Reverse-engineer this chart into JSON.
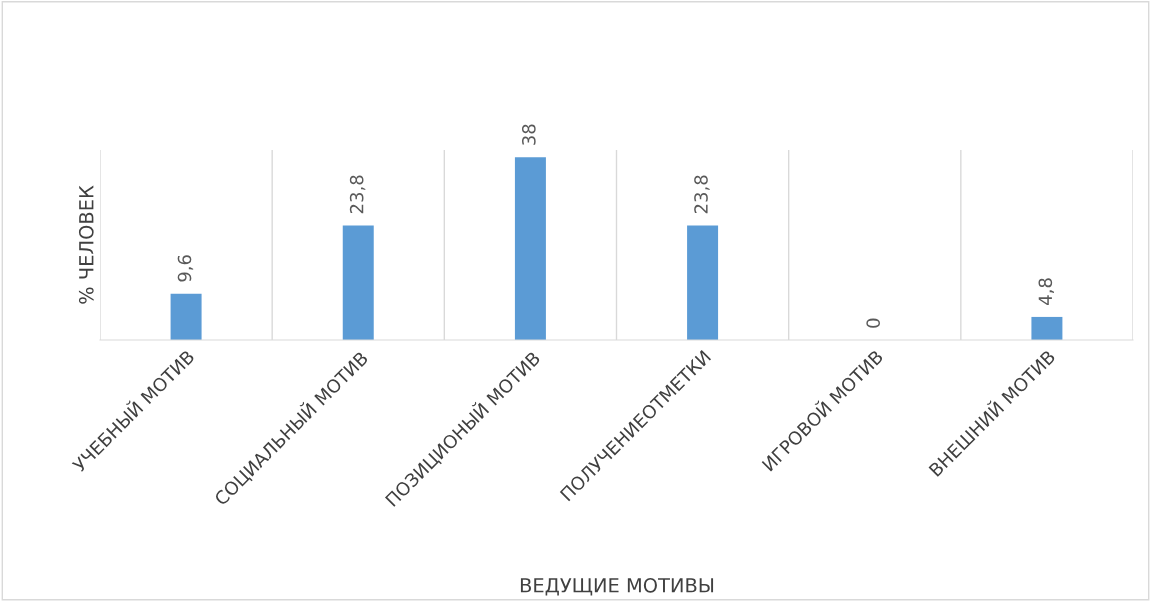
{
  "chart_data": {
    "type": "bar",
    "xlabel": "ВЕДУЩИЕ МОТИВЫ",
    "ylabel": "% ЧЕЛОВЕК",
    "categories": [
      "УЧЕБНЫЙ МОТИВ",
      "СОЦИАЛЬНЫЙ МОТИВ",
      "ПОЗИЦИОНЫЙ МОТИВ",
      "ПОЛУЧЕНИЕОТМЕТКИ",
      "ИГРОВОЙ МОТИВ",
      "ВНЕШНИЙ МОТИВ"
    ],
    "values": [
      9.6,
      23.8,
      38,
      23.8,
      0,
      4.8
    ],
    "value_labels": [
      "9,6",
      "23,8",
      "38",
      "23,8",
      "0",
      "4,8"
    ],
    "color": "#5b9bd5",
    "tick_labels": "x",
    "data_labels": false,
    "grid": "x"
  }
}
